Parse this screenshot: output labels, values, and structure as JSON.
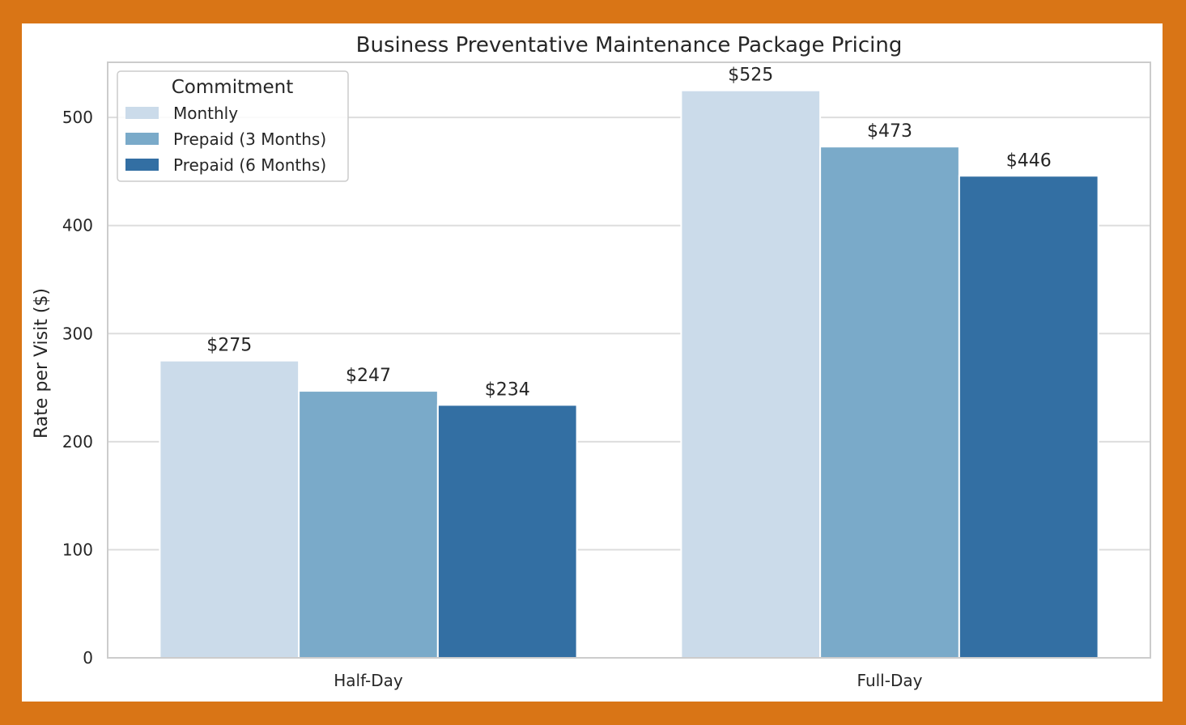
{
  "chart_data": {
    "type": "bar",
    "title": "Business Preventative Maintenance Package Pricing",
    "xlabel": "",
    "ylabel": "Rate per Visit ($)",
    "categories": [
      "Half-Day",
      "Full-Day"
    ],
    "series": [
      {
        "name": "Monthly",
        "values": [
          275,
          525
        ],
        "color": "#cbdbea"
      },
      {
        "name": "Prepaid (3 Months)",
        "values": [
          247,
          473
        ],
        "color": "#7aaac9"
      },
      {
        "name": "Prepaid (6 Months)",
        "values": [
          234,
          446
        ],
        "color": "#336fa3"
      }
    ],
    "value_label_prefix": "$",
    "ylim": [
      0,
      551
    ],
    "yticks": [
      0,
      100,
      200,
      300,
      400,
      500
    ],
    "grid": true,
    "legend": {
      "title": "Commitment",
      "placement": "top-left"
    }
  }
}
